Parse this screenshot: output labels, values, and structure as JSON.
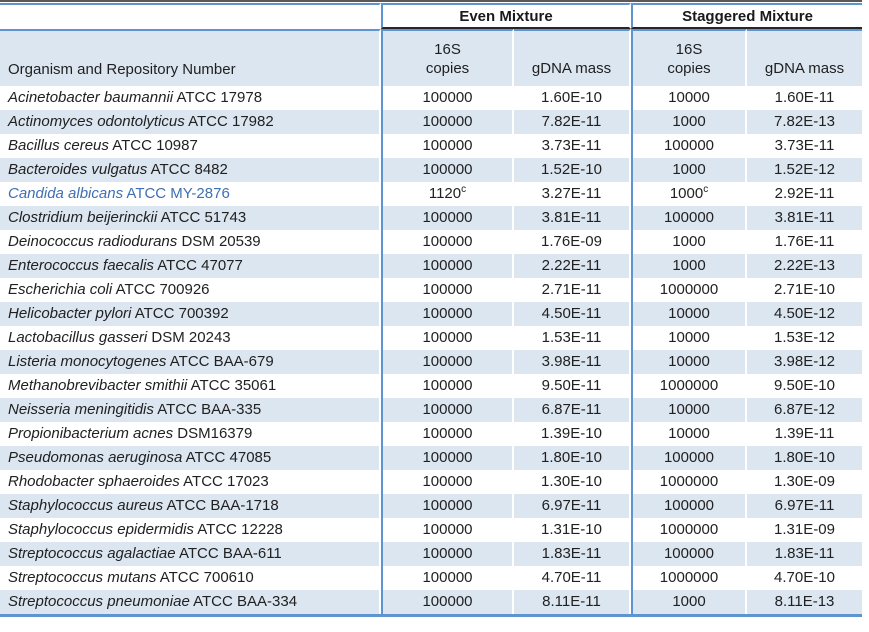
{
  "colors": {
    "band_light_blue": "#dce6f1",
    "rule_blue": "#5e94cf",
    "rule_dark_top": "#595959",
    "rule_dark_header": "#262626",
    "body_text": "#212121",
    "highlight_row_text": "#3f6fb5"
  },
  "table": {
    "groups": {
      "even": "Even Mixture",
      "staggered": "Staggered Mixture"
    },
    "headers": {
      "organism": "Organism and Repository Number",
      "copies_line1": "16S",
      "copies_line2": "copies",
      "gdna": "gDNA mass"
    },
    "rows": [
      {
        "name": "Acinetobacter baumannii",
        "repo": "ATCC 17978",
        "even_copies": "100000",
        "even_copies_sup": "",
        "even_gdna": "1.60E-10",
        "stag_copies": "10000",
        "stag_copies_sup": "",
        "stag_gdna": "1.60E-11",
        "highlight": false
      },
      {
        "name": "Actinomyces odontolyticus",
        "repo": "ATCC 17982",
        "even_copies": "100000",
        "even_copies_sup": "",
        "even_gdna": "7.82E-11",
        "stag_copies": "1000",
        "stag_copies_sup": "",
        "stag_gdna": "7.82E-13",
        "highlight": false
      },
      {
        "name": "Bacillus cereus",
        "repo": "ATCC 10987",
        "even_copies": "100000",
        "even_copies_sup": "",
        "even_gdna": "3.73E-11",
        "stag_copies": "100000",
        "stag_copies_sup": "",
        "stag_gdna": "3.73E-11",
        "highlight": false
      },
      {
        "name": "Bacteroides vulgatus",
        "repo": "ATCC 8482",
        "even_copies": "100000",
        "even_copies_sup": "",
        "even_gdna": "1.52E-10",
        "stag_copies": "1000",
        "stag_copies_sup": "",
        "stag_gdna": "1.52E-12",
        "highlight": false
      },
      {
        "name": "Candida albicans",
        "repo": "ATCC MY-2876",
        "even_copies": "1120",
        "even_copies_sup": "c",
        "even_gdna": "3.27E-11",
        "stag_copies": "1000",
        "stag_copies_sup": "c",
        "stag_gdna": "2.92E-11",
        "highlight": true
      },
      {
        "name": "Clostridium beijerinckii",
        "repo": "ATCC 51743",
        "even_copies": "100000",
        "even_copies_sup": "",
        "even_gdna": "3.81E-11",
        "stag_copies": "100000",
        "stag_copies_sup": "",
        "stag_gdna": "3.81E-11",
        "highlight": false
      },
      {
        "name": "Deinococcus radiodurans",
        "repo": "DSM 20539",
        "even_copies": "100000",
        "even_copies_sup": "",
        "even_gdna": "1.76E-09",
        "stag_copies": "1000",
        "stag_copies_sup": "",
        "stag_gdna": "1.76E-11",
        "highlight": false
      },
      {
        "name": "Enterococcus faecalis",
        "repo": "ATCC 47077",
        "even_copies": "100000",
        "even_copies_sup": "",
        "even_gdna": "2.22E-11",
        "stag_copies": "1000",
        "stag_copies_sup": "",
        "stag_gdna": "2.22E-13",
        "highlight": false
      },
      {
        "name": "Escherichia coli",
        "repo": "ATCC 700926",
        "even_copies": "100000",
        "even_copies_sup": "",
        "even_gdna": "2.71E-11",
        "stag_copies": "1000000",
        "stag_copies_sup": "",
        "stag_gdna": "2.71E-10",
        "highlight": false
      },
      {
        "name": "Helicobacter pylori",
        "repo": "ATCC 700392",
        "even_copies": "100000",
        "even_copies_sup": "",
        "even_gdna": "4.50E-11",
        "stag_copies": "10000",
        "stag_copies_sup": "",
        "stag_gdna": "4.50E-12",
        "highlight": false
      },
      {
        "name": "Lactobacillus gasseri",
        "repo": "DSM 20243",
        "even_copies": "100000",
        "even_copies_sup": "",
        "even_gdna": "1.53E-11",
        "stag_copies": "10000",
        "stag_copies_sup": "",
        "stag_gdna": "1.53E-12",
        "highlight": false
      },
      {
        "name": "Listeria monocytogenes",
        "repo": "ATCC BAA-679",
        "even_copies": "100000",
        "even_copies_sup": "",
        "even_gdna": "3.98E-11",
        "stag_copies": "10000",
        "stag_copies_sup": "",
        "stag_gdna": "3.98E-12",
        "highlight": false
      },
      {
        "name": "Methanobrevibacter smithii",
        "repo": "ATCC 35061",
        "even_copies": "100000",
        "even_copies_sup": "",
        "even_gdna": "9.50E-11",
        "stag_copies": "1000000",
        "stag_copies_sup": "",
        "stag_gdna": "9.50E-10",
        "highlight": false
      },
      {
        "name": "Neisseria meningitidis",
        "repo": "ATCC BAA-335",
        "even_copies": "100000",
        "even_copies_sup": "",
        "even_gdna": "6.87E-11",
        "stag_copies": "10000",
        "stag_copies_sup": "",
        "stag_gdna": "6.87E-12",
        "highlight": false
      },
      {
        "name": "Propionibacterium acnes",
        "repo": "DSM16379",
        "even_copies": "100000",
        "even_copies_sup": "",
        "even_gdna": "1.39E-10",
        "stag_copies": "10000",
        "stag_copies_sup": "",
        "stag_gdna": "1.39E-11",
        "highlight": false
      },
      {
        "name": "Pseudomonas aeruginosa",
        "repo": "ATCC 47085",
        "even_copies": "100000",
        "even_copies_sup": "",
        "even_gdna": "1.80E-10",
        "stag_copies": "100000",
        "stag_copies_sup": "",
        "stag_gdna": "1.80E-10",
        "highlight": false
      },
      {
        "name": "Rhodobacter sphaeroides",
        "repo": "ATCC 17023",
        "even_copies": "100000",
        "even_copies_sup": "",
        "even_gdna": "1.30E-10",
        "stag_copies": "1000000",
        "stag_copies_sup": "",
        "stag_gdna": "1.30E-09",
        "highlight": false
      },
      {
        "name": "Staphylococcus aureus",
        "repo": "ATCC BAA-1718",
        "even_copies": "100000",
        "even_copies_sup": "",
        "even_gdna": "6.97E-11",
        "stag_copies": "100000",
        "stag_copies_sup": "",
        "stag_gdna": "6.97E-11",
        "highlight": false
      },
      {
        "name": "Staphylococcus epidermidis",
        "repo": "ATCC 12228",
        "even_copies": "100000",
        "even_copies_sup": "",
        "even_gdna": "1.31E-10",
        "stag_copies": "1000000",
        "stag_copies_sup": "",
        "stag_gdna": "1.31E-09",
        "highlight": false
      },
      {
        "name": "Streptococcus agalactiae",
        "repo": "ATCC BAA-611",
        "even_copies": "100000",
        "even_copies_sup": "",
        "even_gdna": "1.83E-11",
        "stag_copies": "100000",
        "stag_copies_sup": "",
        "stag_gdna": "1.83E-11",
        "highlight": false
      },
      {
        "name": "Streptococcus mutans",
        "repo": "ATCC 700610",
        "even_copies": "100000",
        "even_copies_sup": "",
        "even_gdna": "4.70E-11",
        "stag_copies": "1000000",
        "stag_copies_sup": "",
        "stag_gdna": "4.70E-10",
        "highlight": false
      },
      {
        "name": "Streptococcus pneumoniae",
        "repo": "ATCC BAA-334",
        "even_copies": "100000",
        "even_copies_sup": "",
        "even_gdna": "8.11E-11",
        "stag_copies": "1000",
        "stag_copies_sup": "",
        "stag_gdna": "8.11E-13",
        "highlight": false
      }
    ]
  }
}
